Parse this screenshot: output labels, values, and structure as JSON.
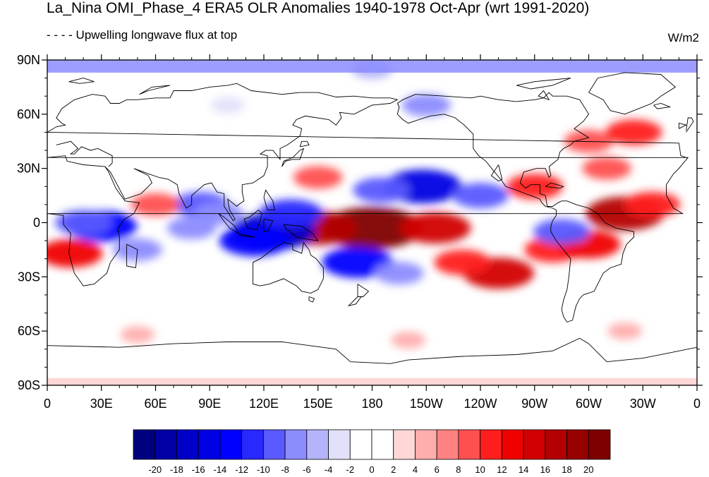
{
  "title": "La_Nina OMI_Phase_4 ERA5 OLR Anomalies 1940-1978 Oct-Apr (wrt 1991-2020)",
  "subtitle": "- - - - Upwelling longwave flux at top",
  "units": "W/m2",
  "map": {
    "projection": "cylindrical-equidistant",
    "lon_range": [
      0,
      360
    ],
    "lat_range": [
      -90,
      90
    ],
    "x_tick_labels": [
      "0",
      "30E",
      "60E",
      "90E",
      "120E",
      "150E",
      "180",
      "150W",
      "120W",
      "90W",
      "60W",
      "30W",
      "0"
    ],
    "y_tick_labels": [
      "90N",
      "60N",
      "30N",
      "0",
      "30S",
      "60S",
      "90S"
    ]
  },
  "colorbar": {
    "labels": [
      "-20",
      "-18",
      "-16",
      "-14",
      "-12",
      "-10",
      "-8",
      "-6",
      "-4",
      "-2",
      "0",
      "2",
      "4",
      "6",
      "8",
      "10",
      "12",
      "14",
      "16",
      "18",
      "20"
    ],
    "colors": [
      "#00007f",
      "#0000a5",
      "#0000c8",
      "#0000e4",
      "#0000ff",
      "#2828ff",
      "#5a5aff",
      "#8c8cff",
      "#b4b4fb",
      "#e1e1fa",
      "#ffffff",
      "#ffffff",
      "#ffd7d7",
      "#ffaeae",
      "#ff8282",
      "#ff5050",
      "#ff1e1e",
      "#f00000",
      "#d20000",
      "#b40000",
      "#960000",
      "#7f0000"
    ]
  },
  "chart_data": {
    "type": "heatmap",
    "variable": "OLR anomaly",
    "units": "W/m2",
    "contour_levels": [
      -20,
      -18,
      -16,
      -14,
      -12,
      -10,
      -8,
      -6,
      -4,
      -2,
      0,
      2,
      4,
      6,
      8,
      10,
      12,
      14,
      16,
      18,
      20
    ],
    "anomaly_regions": [
      {
        "lon": 180,
        "lat": -3,
        "value": 22
      },
      {
        "lon": 150,
        "lat": -3,
        "value": 16
      },
      {
        "lon": 215,
        "lat": -3,
        "value": 14
      },
      {
        "lon": 125,
        "lat": -5,
        "value": -18
      },
      {
        "lon": 115,
        "lat": -10,
        "value": -14
      },
      {
        "lon": 135,
        "lat": 5,
        "value": -12
      },
      {
        "lon": 208,
        "lat": 20,
        "value": -16
      },
      {
        "lon": 185,
        "lat": 18,
        "value": -10
      },
      {
        "lon": 172,
        "lat": -22,
        "value": -14
      },
      {
        "lon": 195,
        "lat": -28,
        "value": -8
      },
      {
        "lon": 30,
        "lat": -2,
        "value": -14
      },
      {
        "lon": 20,
        "lat": 0,
        "value": -10
      },
      {
        "lon": 50,
        "lat": -15,
        "value": -8
      },
      {
        "lon": 85,
        "lat": 10,
        "value": -10
      },
      {
        "lon": 80,
        "lat": -3,
        "value": -8
      },
      {
        "lon": 95,
        "lat": 5,
        "value": -8
      },
      {
        "lon": 250,
        "lat": -28,
        "value": 14
      },
      {
        "lon": 230,
        "lat": -22,
        "value": 10
      },
      {
        "lon": 280,
        "lat": -15,
        "value": 10
      },
      {
        "lon": 300,
        "lat": -12,
        "value": 12
      },
      {
        "lon": 320,
        "lat": 5,
        "value": 16
      },
      {
        "lon": 335,
        "lat": 10,
        "value": 10
      },
      {
        "lon": 270,
        "lat": 20,
        "value": 10
      },
      {
        "lon": 300,
        "lat": 45,
        "value": 8
      },
      {
        "lon": 325,
        "lat": 50,
        "value": 10
      },
      {
        "lon": 310,
        "lat": 30,
        "value": 8
      },
      {
        "lon": 13,
        "lat": -17,
        "value": 12
      },
      {
        "lon": 60,
        "lat": 10,
        "value": 8
      },
      {
        "lon": 150,
        "lat": 25,
        "value": 8
      },
      {
        "lon": 240,
        "lat": 15,
        "value": -10
      },
      {
        "lon": 285,
        "lat": -5,
        "value": -10
      },
      {
        "lon": 180,
        "lat": 85,
        "value": -6
      },
      {
        "lon": 210,
        "lat": 65,
        "value": -8
      },
      {
        "lon": 100,
        "lat": 65,
        "value": -4
      },
      {
        "lon": 200,
        "lat": -65,
        "value": 4
      },
      {
        "lon": 50,
        "lat": -62,
        "value": 4
      },
      {
        "lon": 320,
        "lat": -60,
        "value": 4
      }
    ]
  }
}
